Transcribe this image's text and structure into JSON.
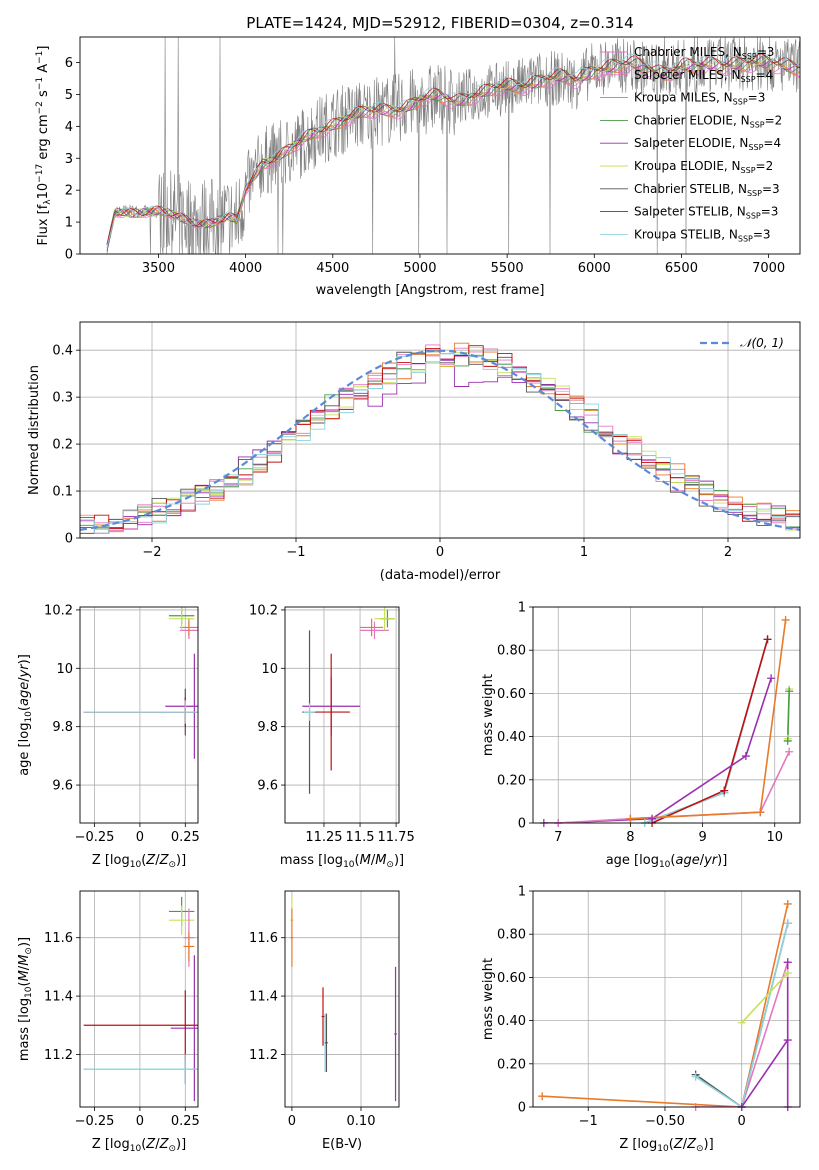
{
  "figure_title": "PLATE=1424, MJD=52912, FIBERID=0304, z=0.314",
  "colors": {
    "Chabrier MILES": "#e377c2",
    "Salpeter MILES": "#e377c2",
    "Kroupa MILES": "#e87a28",
    "Chabrier ELODIE": "#4a9a4a",
    "Salpeter ELODIE": "#9b2fb0",
    "Kroupa ELODIE": "#c9e05a",
    "Chabrier STELIB": "#555555",
    "Salpeter STELIB": "#c01010",
    "Kroupa STELIB": "#8fd3e0",
    "data": "#7f7f7f",
    "normal": "#5b8bd8"
  },
  "chart_data": [
    {
      "id": "spectrum",
      "type": "line",
      "title": "PLATE=1424, MJD=52912, FIBERID=0304, z=0.314",
      "xlabel": "wavelength [Angstrom, rest frame]",
      "ylabel_parts": [
        "Flux [f",
        "λ",
        "10",
        "−17",
        " erg cm",
        "−2",
        " s",
        "−1",
        " A",
        "−1",
        "]"
      ],
      "xlim": [
        3050,
        7180
      ],
      "ylim": [
        0,
        6.8
      ],
      "xticks": [
        3500,
        4000,
        4500,
        5000,
        5500,
        6000,
        6500,
        7000
      ],
      "yticks": [
        0,
        1,
        2,
        3,
        4,
        5,
        6
      ],
      "x": [
        3200,
        3250,
        3300,
        3400,
        3500,
        3600,
        3700,
        3800,
        3900,
        3950,
        4000,
        4100,
        4200,
        4300,
        4400,
        4500,
        4600,
        4700,
        4800,
        4900,
        5000,
        5100,
        5200,
        5300,
        5400,
        5500,
        5600,
        5700,
        5800,
        5900,
        6000,
        6100,
        6200,
        6300,
        6400,
        6500,
        6600,
        6700,
        6800,
        6900,
        7000,
        7100
      ],
      "model_flux": [
        0.0,
        1.3,
        1.35,
        1.35,
        1.3,
        1.15,
        1.05,
        1.0,
        1.1,
        1.0,
        2.0,
        2.9,
        3.1,
        3.4,
        3.8,
        4.1,
        4.3,
        4.4,
        4.5,
        4.6,
        4.8,
        4.9,
        4.8,
        5.0,
        5.1,
        5.2,
        5.3,
        5.5,
        5.5,
        5.4,
        5.8,
        5.9,
        5.9,
        5.8,
        5.7,
        5.9,
        5.8,
        5.9,
        6.0,
        6.0,
        5.9,
        5.9
      ],
      "series": [
        {
          "name": "Chabrier MILES",
          "nssp": "3"
        },
        {
          "name": "Salpeter MILES",
          "nssp": "4"
        },
        {
          "name": "Kroupa MILES",
          "nssp": "3"
        },
        {
          "name": "Chabrier ELODIE",
          "nssp": "2"
        },
        {
          "name": "Salpeter ELODIE",
          "nssp": "4"
        },
        {
          "name": "Kroupa ELODIE",
          "nssp": "2"
        },
        {
          "name": "Chabrier STELIB",
          "nssp": "3"
        },
        {
          "name": "Salpeter STELIB",
          "nssp": "3"
        },
        {
          "name": "Kroupa STELIB",
          "nssp": "3"
        }
      ],
      "legend": "upper right"
    },
    {
      "id": "residuals",
      "type": "line",
      "xlabel": "(data-model)/error",
      "ylabel": "Normed distribution",
      "xlim": [
        -2.5,
        2.5
      ],
      "ylim": [
        0,
        0.46
      ],
      "xticks": [
        -2,
        -1,
        0,
        1,
        2
      ],
      "yticks": [
        0.0,
        0.1,
        0.2,
        0.3,
        0.4
      ],
      "legend_label": "𝒩(0, 1)",
      "legend": "upper right",
      "grid": true
    },
    {
      "id": "age_vs_Z",
      "type": "scatter",
      "xlabel": "Z [log10(Z/Z⊙)]",
      "ylabel": "age [log10(age/yr)]",
      "xlim": [
        -0.33,
        0.32
      ],
      "ylim": [
        9.47,
        10.21
      ],
      "xticks": [
        -0.25,
        0.0,
        0.25
      ],
      "yticks": [
        9.6,
        9.8,
        10.0,
        10.2
      ],
      "grid": true,
      "points": [
        {
          "series": "Chabrier MILES",
          "x": 0.27,
          "xerr": 0.05,
          "y": 10.13,
          "yerr": 0.03
        },
        {
          "series": "Kroupa MILES",
          "x": 0.27,
          "xerr": 0.05,
          "y": 10.14,
          "yerr": 0.03
        },
        {
          "series": "Chabrier ELODIE",
          "x": 0.23,
          "xerr": 0.07,
          "y": 10.18,
          "yerr": 0.03
        },
        {
          "series": "Kroupa ELODIE",
          "x": 0.23,
          "xerr": 0.07,
          "y": 10.17,
          "yerr": 0.04
        },
        {
          "series": "Salpeter ELODIE",
          "x": 0.3,
          "xerr": 0.16,
          "y": 9.87,
          "yerr": 0.18
        },
        {
          "series": "Chabrier STELIB",
          "x": 0.25,
          "xerr": 0.56,
          "y": 9.85,
          "yerr": 0.08
        },
        {
          "series": "Salpeter STELIB",
          "x": 0.25,
          "xerr": 0.56,
          "y": 9.85,
          "yerr": 0.05
        },
        {
          "series": "Kroupa STELIB",
          "x": 0.25,
          "xerr": 0.56,
          "y": 9.85,
          "yerr": 0.04
        }
      ]
    },
    {
      "id": "age_vs_mass",
      "type": "scatter",
      "xlabel": "mass [log10(M/M⊙)]",
      "xlim": [
        10.98,
        11.77
      ],
      "ylim": [
        9.47,
        10.21
      ],
      "xticks": [
        11.25,
        11.5,
        11.75
      ],
      "yticks": [
        9.6,
        9.8,
        10.0,
        10.2
      ],
      "grid": true,
      "points": [
        {
          "series": "Chabrier MILES",
          "x": 11.6,
          "xerr": 0.1,
          "y": 10.13,
          "yerr": 0.03
        },
        {
          "series": "Kroupa MILES",
          "x": 11.58,
          "xerr": 0.08,
          "y": 10.14,
          "yerr": 0.03
        },
        {
          "series": "Chabrier ELODIE",
          "x": 11.69,
          "xerr": 0.05,
          "y": 10.17,
          "yerr": 0.03
        },
        {
          "series": "Kroupa ELODIE",
          "x": 11.67,
          "xerr": 0.07,
          "y": 10.17,
          "yerr": 0.04
        },
        {
          "series": "Salpeter ELODIE",
          "x": 11.3,
          "xerr": 0.2,
          "y": 9.87,
          "yerr": 0.1
        },
        {
          "series": "Salpeter STELIB",
          "x": 11.3,
          "xerr": 0.13,
          "y": 9.85,
          "yerr": 0.2
        },
        {
          "series": "Chabrier STELIB",
          "x": 11.15,
          "xerr": 0.05,
          "y": 9.85,
          "yerr": 0.28
        },
        {
          "series": "Kroupa STELIB",
          "x": 11.15,
          "xerr": 0.04,
          "y": 9.85,
          "yerr": 0.03
        }
      ]
    },
    {
      "id": "weight_vs_age",
      "type": "line",
      "xlabel": "age [log10(age/yr)]",
      "ylabel": "mass weight",
      "xlim": [
        6.65,
        10.35
      ],
      "ylim": [
        0,
        1
      ],
      "xticks": [
        7,
        8,
        9,
        10
      ],
      "yticks": [
        0.0,
        0.2,
        0.4,
        0.6,
        0.8,
        1.0
      ],
      "grid": true,
      "series": [
        {
          "name": "Chabrier STELIB",
          "x": [
            8.2,
            9.3,
            9.9
          ],
          "y": [
            0.0,
            0.14,
            0.85
          ]
        },
        {
          "name": "Kroupa STELIB",
          "x": [
            8.2,
            9.3,
            9.9
          ],
          "y": [
            0.0,
            0.14,
            0.85
          ]
        },
        {
          "name": "Salpeter STELIB",
          "x": [
            8.3,
            9.3,
            9.9
          ],
          "y": [
            0.0,
            0.15,
            0.85
          ]
        },
        {
          "name": "Salpeter ELODIE",
          "x": [
            6.8,
            7.0,
            8.3,
            9.6,
            9.95
          ],
          "y": [
            0.0,
            0.0,
            0.02,
            0.31,
            0.67
          ]
        },
        {
          "name": "Chabrier MILES",
          "x": [
            7.0,
            8.0,
            9.8,
            10.2
          ],
          "y": [
            0.0,
            0.02,
            0.05,
            0.33
          ]
        },
        {
          "name": "Kroupa MILES",
          "x": [
            8.0,
            9.8,
            10.15
          ],
          "y": [
            0.02,
            0.05,
            0.94
          ]
        },
        {
          "name": "Kroupa ELODIE",
          "x": [
            10.18,
            10.2
          ],
          "y": [
            0.39,
            0.62
          ]
        },
        {
          "name": "Chabrier ELODIE",
          "x": [
            10.18,
            10.2
          ],
          "y": [
            0.38,
            0.61
          ]
        }
      ]
    },
    {
      "id": "mass_vs_Z",
      "type": "scatter",
      "xlabel": "Z [log10(Z/Z⊙)]",
      "ylabel": "mass [log10(M/M⊙)]",
      "xlim": [
        -0.33,
        0.32
      ],
      "ylim": [
        11.02,
        11.76
      ],
      "xticks": [
        -0.25,
        0.0,
        0.25
      ],
      "yticks": [
        11.2,
        11.4,
        11.6
      ],
      "grid": true,
      "points": [
        {
          "series": "Chabrier ELODIE",
          "x": 0.23,
          "xerr": 0.07,
          "y": 11.69,
          "yerr": 0.05
        },
        {
          "series": "Kroupa ELODIE",
          "x": 0.23,
          "xerr": 0.07,
          "y": 11.66,
          "yerr": 0.05
        },
        {
          "series": "Chabrier MILES",
          "x": 0.27,
          "xerr": 0.03,
          "y": 11.6,
          "yerr": 0.1
        },
        {
          "series": "Kroupa MILES",
          "x": 0.27,
          "xerr": 0.03,
          "y": 11.57,
          "yerr": 0.05
        },
        {
          "series": "Salpeter ELODIE",
          "x": 0.3,
          "xerr": 0.13,
          "y": 11.29,
          "yerr": 0.25
        },
        {
          "series": "Salpeter STELIB",
          "x": 0.25,
          "xerr": 0.56,
          "y": 11.3,
          "yerr": 0.12
        },
        {
          "series": "Chabrier STELIB",
          "x": 0.25,
          "xerr": 0.56,
          "y": 11.15,
          "yerr": 0.05
        },
        {
          "series": "Kroupa STELIB",
          "x": 0.25,
          "xerr": 0.56,
          "y": 11.15,
          "yerr": 0.05
        }
      ]
    },
    {
      "id": "mass_vs_ebv",
      "type": "scatter",
      "xlabel": "E(B-V)",
      "xlim": [
        -0.01,
        0.155
      ],
      "ylim": [
        11.02,
        11.76
      ],
      "xticks": [
        0.0,
        0.1
      ],
      "yticks": [
        11.2,
        11.4,
        11.6
      ],
      "grid": true,
      "points": [
        {
          "series": "Kroupa ELODIE",
          "x": 0.0,
          "y": 11.66,
          "yerr": 0.08
        },
        {
          "series": "Kroupa MILES",
          "x": 0.0,
          "y": 11.6,
          "yerr": 0.1
        },
        {
          "series": "Salpeter STELIB",
          "x": 0.045,
          "y": 11.33,
          "yerr": 0.1
        },
        {
          "series": "Kroupa STELIB",
          "x": 0.048,
          "y": 11.24,
          "yerr": 0.1
        },
        {
          "series": "Chabrier STELIB",
          "x": 0.05,
          "y": 11.24,
          "yerr": 0.1
        },
        {
          "series": "Salpeter ELODIE",
          "x": 0.15,
          "y": 11.27,
          "yerr": 0.23
        }
      ]
    },
    {
      "id": "weight_vs_Z",
      "type": "line",
      "xlabel": "Z [log10(Z/Z⊙)]",
      "ylabel": "mass weight",
      "xlim": [
        -1.36,
        0.38
      ],
      "ylim": [
        0,
        1
      ],
      "xticks": [
        -1.0,
        -0.5,
        0.0
      ],
      "yticks": [
        0.0,
        0.2,
        0.4,
        0.6,
        0.8,
        1.0
      ],
      "grid": true,
      "series": [
        {
          "name": "Kroupa MILES",
          "x": [
            -1.3,
            0.0,
            0.3
          ],
          "y": [
            0.05,
            0.0,
            0.94
          ]
        },
        {
          "name": "Chabrier MILES",
          "x": [
            -0.3,
            0.0,
            0.3
          ],
          "y": [
            0.0,
            0.0,
            0.67
          ]
        },
        {
          "name": "Chabrier STELIB",
          "x": [
            -0.3,
            0.0,
            0.3
          ],
          "y": [
            0.15,
            0.0,
            0.85
          ]
        },
        {
          "name": "Kroupa STELIB",
          "x": [
            -0.3,
            0.0,
            0.3
          ],
          "y": [
            0.14,
            0.0,
            0.85
          ]
        },
        {
          "name": "Salpeter ELODIE",
          "x": [
            0.0,
            0.3,
            0.3,
            0.3
          ],
          "y": [
            0.0,
            0.31,
            0.67,
            0.0
          ]
        },
        {
          "name": "Kroupa ELODIE",
          "x": [
            0.0,
            0.3
          ],
          "y": [
            0.39,
            0.62
          ]
        }
      ]
    }
  ]
}
